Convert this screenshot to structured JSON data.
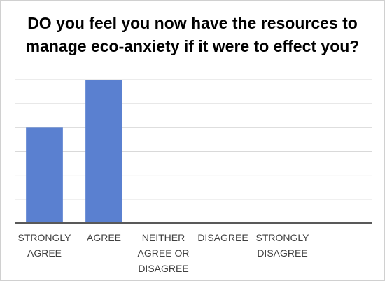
{
  "chart_data": {
    "type": "bar",
    "title": "DO you feel you now have the resources to manage eco-anxiety if it were to effect you?",
    "categories": [
      "STRONGLY AGREE",
      "AGREE",
      "NEITHER AGREE OR DISAGREE",
      "DISAGREE",
      "STRONGLY DISAGREE",
      null
    ],
    "values": [
      4,
      6,
      0,
      0,
      0,
      null
    ],
    "color": "#5a80d0",
    "ylim": [
      0,
      6
    ],
    "yticks": [
      0,
      1,
      2,
      3,
      4,
      5,
      6
    ],
    "grid": true
  }
}
